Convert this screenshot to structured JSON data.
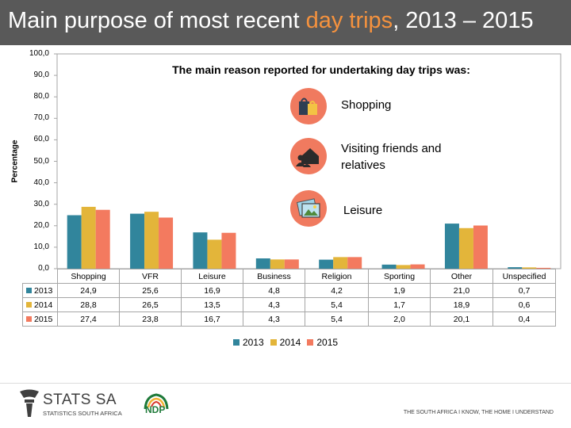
{
  "slide": {
    "title_before": "Main purpose of most recent ",
    "title_highlight": "day trips",
    "title_after": ", 2013 – 2015"
  },
  "annotation": {
    "heading": "The main reason reported for undertaking  day trips was:",
    "reasons": [
      {
        "icon": "shopping-bags-icon",
        "label": "Shopping"
      },
      {
        "icon": "friends-house-icon",
        "label_line1": "Visiting friends and",
        "label_line2": "relatives"
      },
      {
        "icon": "photo-frame-icon",
        "label": "Leisure"
      }
    ]
  },
  "chart_data": {
    "type": "bar",
    "ylabel": "Percentage",
    "ylim": [
      0,
      100
    ],
    "yticks": [
      "0,0",
      "10,0",
      "20,0",
      "30,0",
      "40,0",
      "50,0",
      "60,0",
      "70,0",
      "80,0",
      "90,0",
      "100,0"
    ],
    "categories": [
      "Shopping",
      "VFR",
      "Leisure",
      "Business",
      "Religion",
      "Sporting",
      "Other",
      "Unspecified"
    ],
    "series": [
      {
        "name": "2013",
        "color": "#31859c",
        "values": [
          24.9,
          25.6,
          16.9,
          4.8,
          4.2,
          1.9,
          21.0,
          0.7
        ],
        "labels": [
          "24,9",
          "25,6",
          "16,9",
          "4,8",
          "4,2",
          "1,9",
          "21,0",
          "0,7"
        ]
      },
      {
        "name": "2014",
        "color": "#e3b53a",
        "values": [
          28.8,
          26.5,
          13.5,
          4.3,
          5.4,
          1.7,
          18.9,
          0.6
        ],
        "labels": [
          "28,8",
          "26,5",
          "13,5",
          "4,3",
          "5,4",
          "1,7",
          "18,9",
          "0,6"
        ]
      },
      {
        "name": "2015",
        "color": "#f37a5f",
        "values": [
          27.4,
          23.8,
          16.7,
          4.3,
          5.4,
          2.0,
          20.1,
          0.4
        ],
        "labels": [
          "27,4",
          "23,8",
          "16,7",
          "4,3",
          "5,4",
          "2,0",
          "20,1",
          "0,4"
        ]
      }
    ]
  },
  "footer": {
    "org_name": "STATS SA",
    "org_sub": "STATISTICS SOUTH AFRICA",
    "ndp_label": "NDP",
    "slogan": "THE SOUTH AFRICA I KNOW, THE HOME I UNDERSTAND"
  }
}
